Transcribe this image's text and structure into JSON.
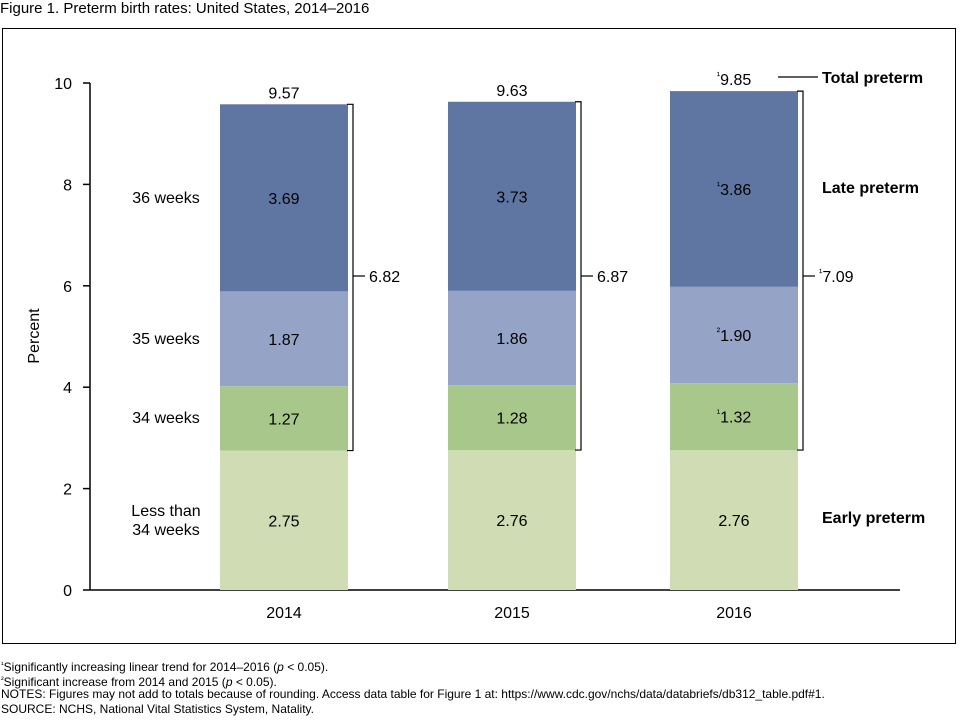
{
  "figure_title": "Figure 1. Preterm birth rates: United States, 2014–2016",
  "chart_data": {
    "type": "bar",
    "stacked": true,
    "categories": [
      "2014",
      "2015",
      "2016"
    ],
    "ylabel": "Percent",
    "ylim": [
      0,
      10
    ],
    "yticks": [
      0,
      2,
      4,
      6,
      8,
      10
    ],
    "grid": false,
    "series": [
      {
        "name": "Less than 34 weeks",
        "values": [
          2.75,
          2.76,
          2.76
        ],
        "labels": [
          "2.75",
          "2.76",
          "2.76"
        ],
        "color": "#cfdcb4"
      },
      {
        "name": "34 weeks",
        "values": [
          1.27,
          1.28,
          1.32
        ],
        "labels": [
          "1.27",
          "1.28",
          "¹1.32"
        ],
        "color": "#a8c88b"
      },
      {
        "name": "35 weeks",
        "values": [
          1.87,
          1.86,
          1.9
        ],
        "labels": [
          "1.87",
          "1.86",
          "²1.90"
        ],
        "color": "#95a3c7"
      },
      {
        "name": "36 weeks",
        "values": [
          3.69,
          3.73,
          3.86
        ],
        "labels": [
          "3.69",
          "3.73",
          "¹3.86"
        ],
        "color": "#5f76a3"
      }
    ],
    "totals": {
      "values": [
        9.57,
        9.63,
        9.85
      ],
      "labels": [
        "9.57",
        "9.63",
        "¹9.85"
      ]
    },
    "late_preterm": {
      "values": [
        6.82,
        6.87,
        7.09
      ],
      "labels": [
        "6.82",
        "6.87",
        "¹7.09"
      ]
    },
    "group_labels": {
      "total": "Total preterm",
      "late": "Late preterm",
      "early": "Early preterm"
    }
  },
  "footnotes": [
    "¹Significantly increasing linear trend for 2014–2016 (<i>p</i> < 0.05).",
    "²Significant increase from 2014 and 2015 (<i>p</i> < 0.05).",
    "NOTES: Figures may not add to totals because of rounding. Access data table for Figure 1 at: https://www.cdc.gov/nchs/data/databriefs/db312_table.pdf#1.",
    "SOURCE: NCHS, National Vital Statistics System, Natality."
  ]
}
